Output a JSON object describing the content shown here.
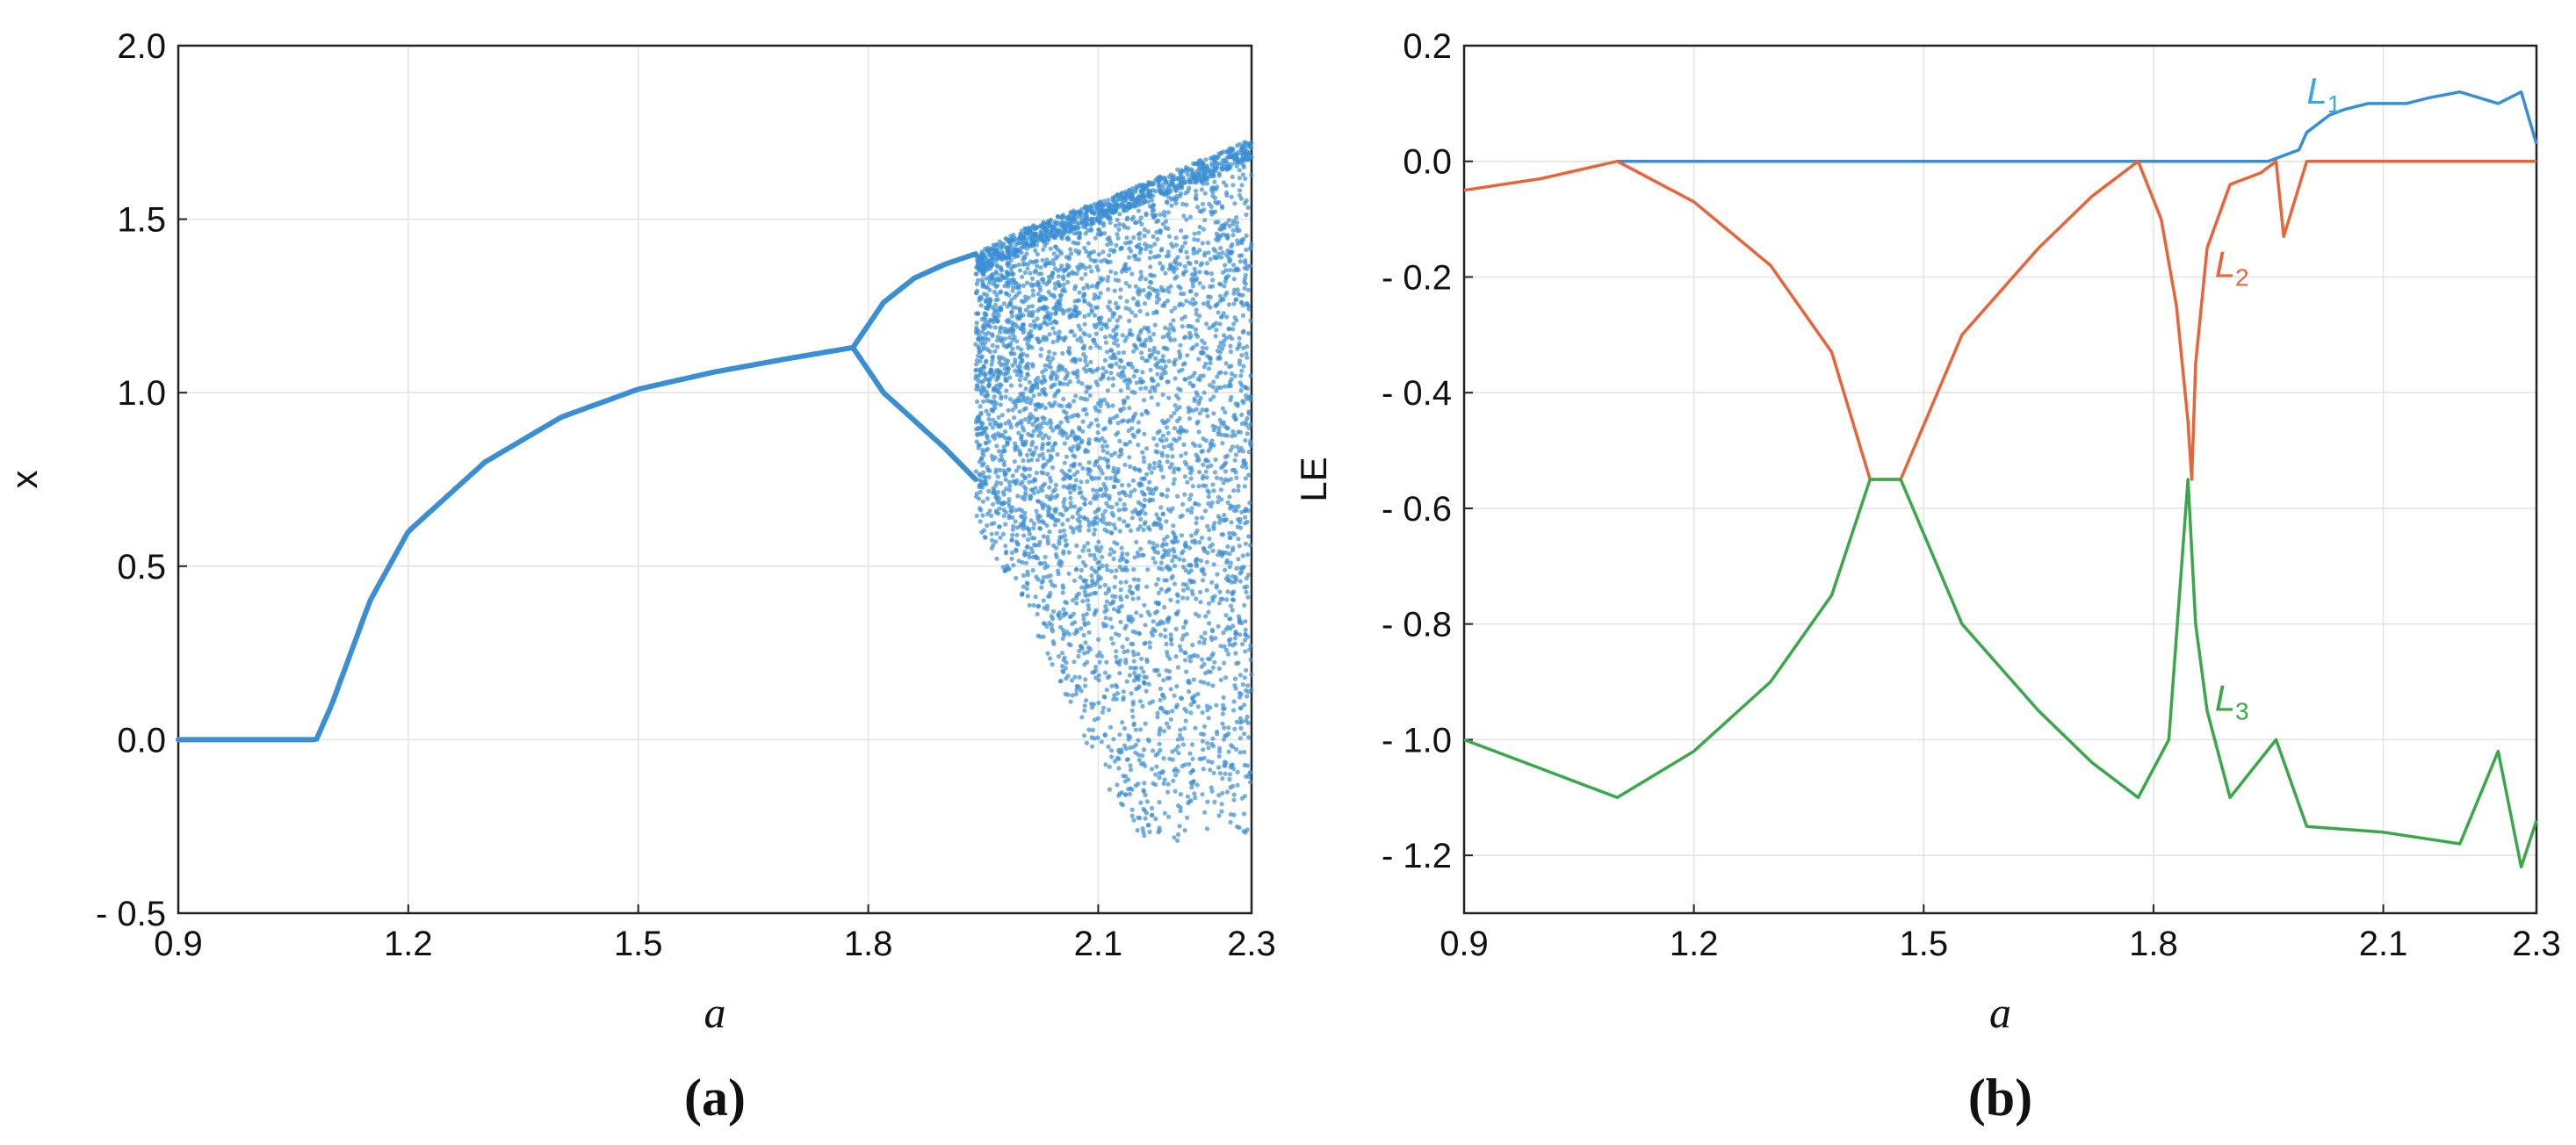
{
  "colors": {
    "blue": "#3a8fd4",
    "orange": "#e8653a",
    "green": "#3aa84a",
    "l1": "#39a8e0"
  },
  "chart_data": [
    {
      "type": "scatter",
      "panel_label": "(a)",
      "xlabel": "a",
      "ylabel": "x",
      "xlim": [
        0.9,
        2.3
      ],
      "ylim": [
        -0.5,
        2.0
      ],
      "xticks": [
        "0.9",
        "1.2",
        "1.5",
        "1.8",
        "2.1",
        "2.3"
      ],
      "xtick_values": [
        0.9,
        1.2,
        1.5,
        1.8,
        2.1,
        2.3
      ],
      "yticks": [
        "- 0.5",
        "0.0",
        "0.5",
        "1.0",
        "1.5",
        "2.0"
      ],
      "ytick_values": [
        -0.5,
        0.0,
        0.5,
        1.0,
        1.5,
        2.0
      ],
      "grid": true,
      "series": [
        {
          "color": "blue",
          "fixed_point": {
            "a": [
              0.9,
              1.08,
              1.1,
              1.15,
              1.2,
              1.3,
              1.4,
              1.5,
              1.6,
              1.7,
              1.78
            ],
            "x": [
              0.0,
              0.0,
              0.1,
              0.4,
              0.6,
              0.8,
              0.93,
              1.01,
              1.06,
              1.1,
              1.13
            ]
          },
          "period2_upper": {
            "a": [
              1.78,
              1.82,
              1.86,
              1.9,
              1.94
            ],
            "x": [
              1.13,
              1.26,
              1.33,
              1.37,
              1.4
            ]
          },
          "period2_lower": {
            "a": [
              1.78,
              1.82,
              1.86,
              1.9,
              1.94
            ],
            "x": [
              1.13,
              1.0,
              0.92,
              0.84,
              0.75
            ]
          },
          "chaos_band_top": {
            "a": [
              1.94,
              2.0,
              2.1,
              2.2,
              2.3
            ],
            "x": [
              1.4,
              1.47,
              1.55,
              1.64,
              1.73
            ]
          },
          "chaos_band_bottom": {
            "a": [
              1.94,
              2.0,
              2.05,
              2.1,
              2.15,
              2.2,
              2.25,
              2.3
            ],
            "x": [
              0.62,
              0.4,
              0.15,
              -0.1,
              -0.28,
              -0.3,
              -0.25,
              -0.3
            ]
          }
        }
      ]
    },
    {
      "type": "line",
      "panel_label": "(b)",
      "xlabel": "a",
      "ylabel": "LE",
      "xlim": [
        0.9,
        2.3
      ],
      "ylim": [
        -1.3,
        0.2
      ],
      "xticks": [
        "0.9",
        "1.2",
        "1.5",
        "1.8",
        "2.1",
        "2.3"
      ],
      "xtick_values": [
        0.9,
        1.2,
        1.5,
        1.8,
        2.1,
        2.3
      ],
      "yticks": [
        "0.2",
        "0.0",
        "- 0.2",
        "- 0.4",
        "- 0.6",
        "- 0.8",
        "- 1.0",
        "- 1.2"
      ],
      "ytick_values": [
        0.2,
        0.0,
        -0.2,
        -0.4,
        -0.6,
        -0.8,
        -1.0,
        -1.2
      ],
      "grid": true,
      "series": [
        {
          "name": "L1",
          "color": "blue",
          "x": [
            0.9,
            1.1,
            1.5,
            1.8,
            1.9,
            1.95,
            1.99,
            2.0,
            2.03,
            2.05,
            2.08,
            2.1,
            2.13,
            2.16,
            2.2,
            2.25,
            2.28,
            2.3
          ],
          "y": [
            null,
            0.0,
            0.0,
            0.0,
            0.0,
            0.0,
            0.02,
            0.05,
            0.08,
            0.09,
            0.1,
            0.1,
            0.1,
            0.11,
            0.12,
            0.1,
            0.12,
            0.03
          ]
        },
        {
          "name": "L2",
          "color": "orange",
          "x": [
            0.9,
            1.0,
            1.1,
            1.2,
            1.3,
            1.38,
            1.43,
            1.47,
            1.55,
            1.65,
            1.72,
            1.78,
            1.81,
            1.83,
            1.845,
            1.85,
            1.855,
            1.87,
            1.9,
            1.94,
            1.96,
            1.97,
            2.0,
            2.3
          ],
          "y": [
            -0.05,
            -0.03,
            0.0,
            -0.07,
            -0.18,
            -0.33,
            -0.55,
            -0.55,
            -0.3,
            -0.15,
            -0.06,
            0.0,
            -0.1,
            -0.25,
            -0.45,
            -0.55,
            -0.35,
            -0.15,
            -0.04,
            -0.02,
            0.0,
            -0.13,
            0.0,
            0.0
          ]
        },
        {
          "name": "L3",
          "color": "green",
          "x": [
            0.9,
            1.0,
            1.1,
            1.2,
            1.3,
            1.38,
            1.43,
            1.47,
            1.55,
            1.65,
            1.72,
            1.78,
            1.82,
            1.845,
            1.855,
            1.87,
            1.9,
            1.96,
            2.0,
            2.1,
            2.2,
            2.25,
            2.28,
            2.3
          ],
          "y": [
            -1.0,
            -1.05,
            -1.1,
            -1.02,
            -0.9,
            -0.75,
            -0.55,
            -0.55,
            -0.8,
            -0.95,
            -1.04,
            -1.1,
            -1.0,
            -0.55,
            -0.8,
            -0.95,
            -1.1,
            -1.0,
            -1.15,
            -1.16,
            -1.18,
            -1.02,
            -1.22,
            -1.14
          ]
        }
      ],
      "annotations": [
        {
          "text": "L",
          "sub": "1",
          "series": "L1",
          "at": [
            2.0,
            0.1
          ]
        },
        {
          "text": "L",
          "sub": "2",
          "series": "L2",
          "at": [
            1.88,
            -0.2
          ]
        },
        {
          "text": "L",
          "sub": "3",
          "series": "L3",
          "at": [
            1.88,
            -0.95
          ]
        }
      ]
    }
  ]
}
